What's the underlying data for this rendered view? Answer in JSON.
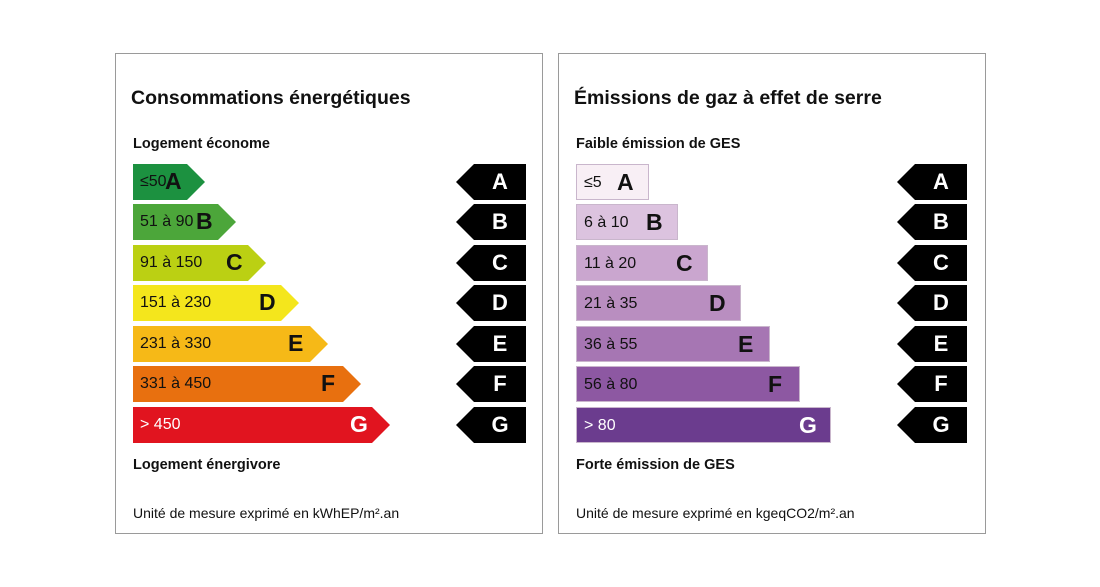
{
  "panels": [
    {
      "title": "Consommations énergétiques",
      "top_label": "Logement économe",
      "bottom_label": "Logement énergivore",
      "unit": "Unité de mesure exprimé en kWhEP/m².an",
      "shape": "arrow",
      "classes": [
        {
          "range": "≤50",
          "letter": "A",
          "color": "#1c9140",
          "text_color": "#111"
        },
        {
          "range": "51 à 90",
          "letter": "B",
          "color": "#4ca63a",
          "text_color": "#111"
        },
        {
          "range": "91 à 150",
          "letter": "C",
          "color": "#bbd013",
          "text_color": "#111"
        },
        {
          "range": "151 à 230",
          "letter": "D",
          "color": "#f4e61c",
          "text_color": "#111"
        },
        {
          "range": "231 à 330",
          "letter": "E",
          "color": "#f6b917",
          "text_color": "#111"
        },
        {
          "range": "331 à 450",
          "letter": "F",
          "color": "#e8700f",
          "text_color": "#111"
        },
        {
          "range": "> 450",
          "letter": "G",
          "color": "#e1141f",
          "text_color": "#fff"
        }
      ]
    },
    {
      "title": "Émissions de gaz à effet de serre",
      "top_label": "Faible émission de GES",
      "bottom_label": "Forte émission de GES",
      "unit": "Unité de mesure exprimé en kgeqCO2/m².an",
      "shape": "rect",
      "classes": [
        {
          "range": "≤5",
          "letter": "A",
          "color": "#f8eff5",
          "text_color": "#111"
        },
        {
          "range": "6 à 10",
          "letter": "B",
          "color": "#dcc3df",
          "text_color": "#111"
        },
        {
          "range": "11 à 20",
          "letter": "C",
          "color": "#caa6cf",
          "text_color": "#111"
        },
        {
          "range": "21 à 35",
          "letter": "D",
          "color": "#b98ec0",
          "text_color": "#111"
        },
        {
          "range": "36 à 55",
          "letter": "E",
          "color": "#a676b3",
          "text_color": "#111"
        },
        {
          "range": "56 à 80",
          "letter": "F",
          "color": "#8d58a2",
          "text_color": "#111"
        },
        {
          "range": "> 80",
          "letter": "G",
          "color": "#6b3c8e",
          "text_color": "#fff"
        }
      ]
    }
  ]
}
